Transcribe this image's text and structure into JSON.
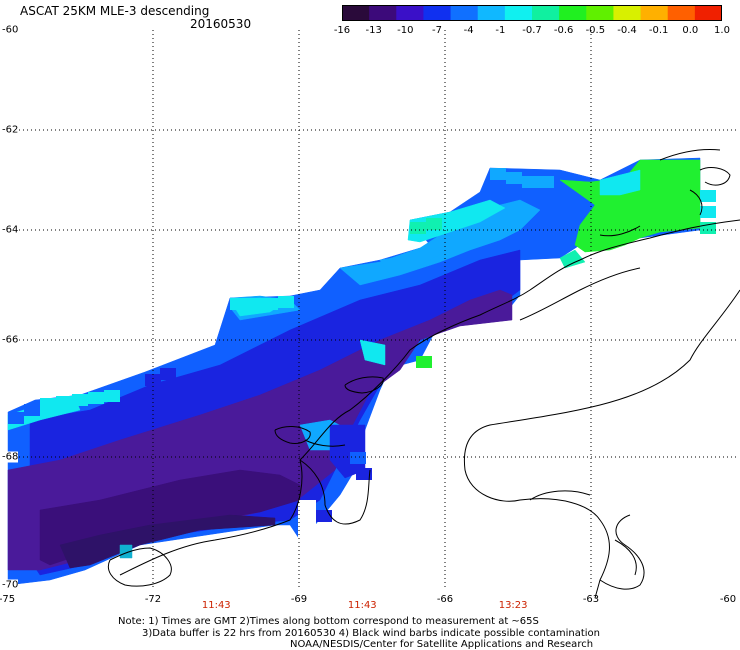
{
  "header": {
    "title": "ASCAT 25KM MLE-3 descending",
    "date": "20160530"
  },
  "colorbar": {
    "labels": [
      "-16",
      "-13",
      "-10",
      "-7",
      "-4",
      "-1",
      "-0.7",
      "-0.6",
      "-0.5",
      "-0.4",
      "-0.1",
      "0.0",
      "1.0"
    ],
    "colors": [
      "#2a0a3a",
      "#3c0a7a",
      "#3a10c8",
      "#1030f0",
      "#1070ff",
      "#10b8ff",
      "#10f0f0",
      "#10f0a0",
      "#20f020",
      "#60f000",
      "#d8f000",
      "#ffb000",
      "#ff6000",
      "#f02000"
    ]
  },
  "axes": {
    "latitudes": [
      "-60",
      "-62",
      "-64",
      "-66",
      "-68",
      "-70"
    ],
    "longitudes": [
      "-75",
      "-72",
      "-69",
      "-66",
      "-63",
      "-60"
    ],
    "pass_times": [
      {
        "label": "11:43",
        "lon": -70.7
      },
      {
        "label": "11:43",
        "lon": -67.7
      },
      {
        "label": "13:23",
        "lon": -64.6
      }
    ]
  },
  "footer": {
    "note1": "Note: 1) Times are GMT 2)Times along bottom correspond to measurement at ~65S",
    "note2": "3)Data buffer is 22 hrs from 20160530 4) Black wind barbs indicate possible contamination",
    "note3": "NOAA/NESDIS/Center for Satellite Applications and Research"
  }
}
